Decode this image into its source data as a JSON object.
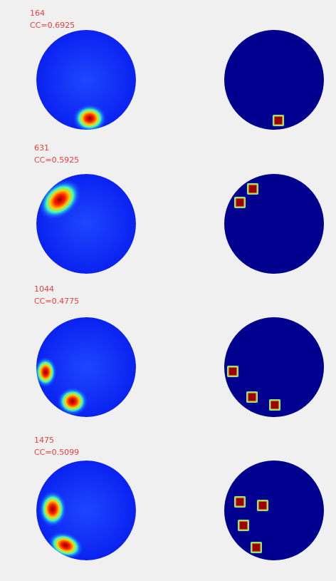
{
  "panels": [
    {
      "label": "164",
      "cc": "CC=0.6925"
    },
    {
      "label": "631",
      "cc": "CC=0.5925"
    },
    {
      "label": "1044",
      "cc": "CC=0.4775"
    },
    {
      "label": "1475",
      "cc": "CC=0.5099"
    }
  ]
}
